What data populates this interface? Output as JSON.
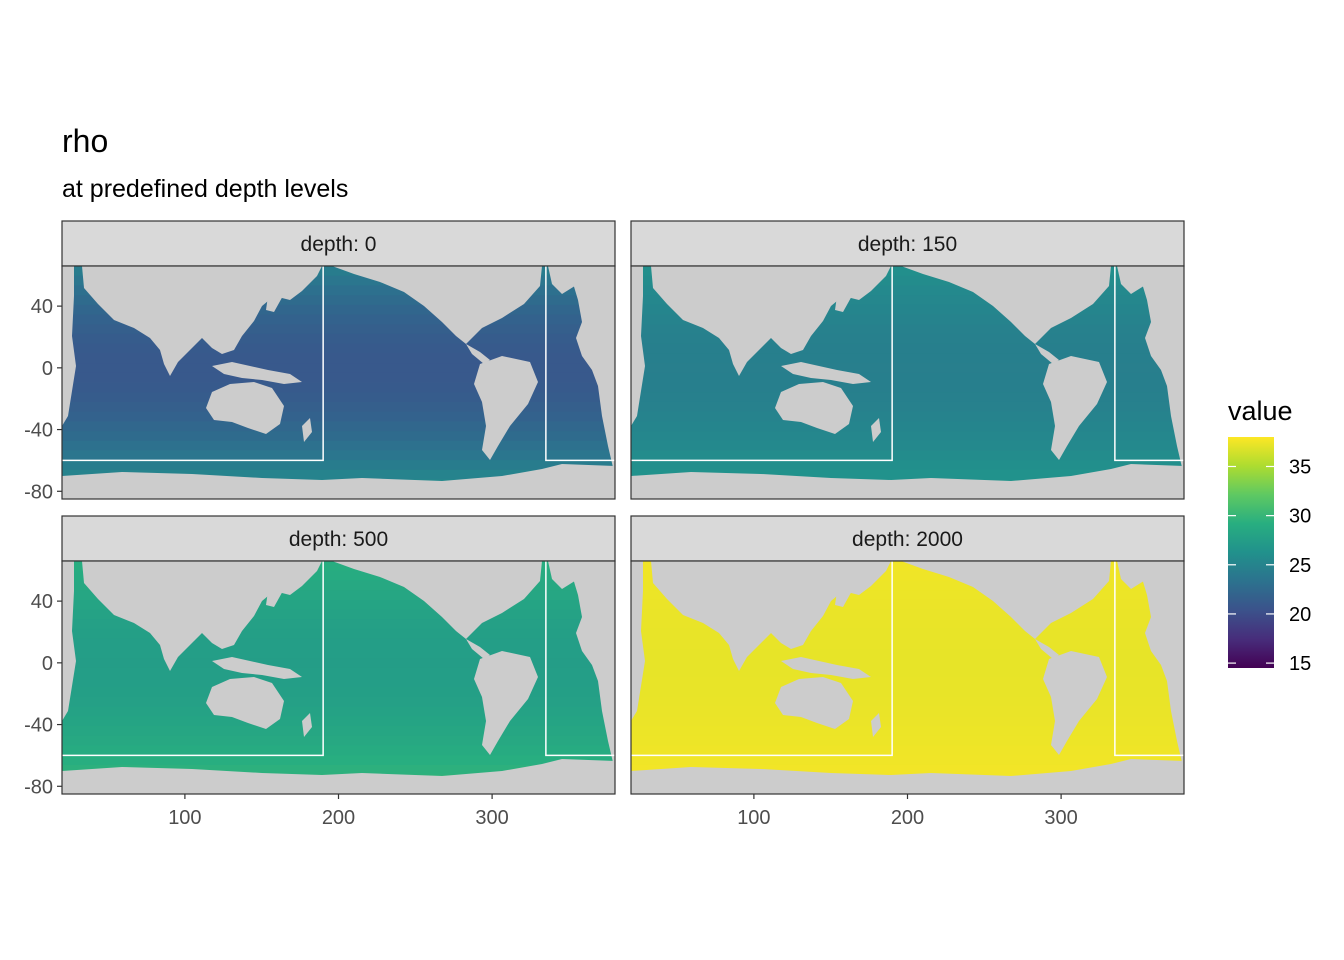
{
  "title": "rho",
  "subtitle": "at predefined depth levels",
  "chart_data": {
    "type": "heatmap",
    "title": "rho",
    "subtitle": "at predefined depth levels",
    "xlabel": "",
    "ylabel": "",
    "xlim": [
      20,
      380
    ],
    "ylim": [
      -85,
      66
    ],
    "x_ticks": [
      100,
      200,
      300
    ],
    "y_ticks": [
      -80,
      -40,
      0,
      40
    ],
    "x_tick_labels": [
      "100",
      "200",
      "300"
    ],
    "y_tick_labels": [
      "-80",
      "-40",
      "0",
      "40"
    ],
    "boundary_box": {
      "lon_min": 20,
      "lon_max": 190,
      "lat_min": -60,
      "lat_max": 66,
      "wrap_lon_min": 335,
      "color": "#ffffff"
    },
    "panels": [
      {
        "label": "depth: 0",
        "depth": 0,
        "typical_value": 24,
        "min_value": 21,
        "max_value": 27
      },
      {
        "label": "depth: 150",
        "depth": 150,
        "typical_value": 26,
        "min_value": 24.5,
        "max_value": 27.3
      },
      {
        "label": "depth: 500",
        "depth": 500,
        "typical_value": 28.5,
        "min_value": 27.5,
        "max_value": 30.5
      },
      {
        "label": "depth: 2000",
        "depth": 2000,
        "typical_value": 37.5,
        "min_value": 37.2,
        "max_value": 37.8
      }
    ],
    "legend": {
      "title": "value",
      "placement": "right",
      "min": 14.5,
      "max": 38,
      "ticks": [
        15,
        20,
        25,
        30,
        35
      ],
      "tick_labels": [
        "15",
        "20",
        "25",
        "30",
        "35"
      ],
      "colormap": "viridis"
    },
    "land_color": "#cccccc",
    "strip_fill": "#d9d9d9"
  }
}
